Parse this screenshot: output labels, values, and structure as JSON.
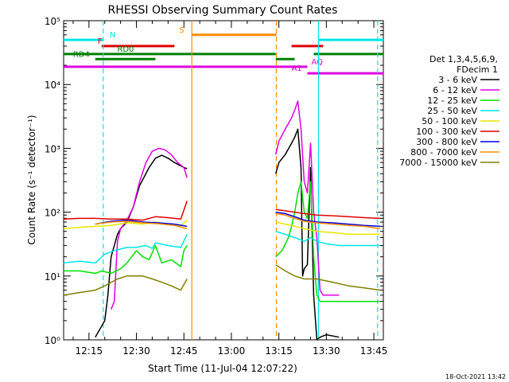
{
  "chart_data": {
    "type": "line",
    "title": "RHESSI Observing Summary Count Rates",
    "xlabel": "Start Time (11-Jul-04 12:07:22)",
    "ylabel": "Count Rate (s⁻¹ detector⁻¹)",
    "x_ticks": [
      "12:15",
      "12:30",
      "12:45",
      "13:00",
      "13:15",
      "13:30",
      "13:45"
    ],
    "x_range_minutes_after_1207": [
      0,
      101
    ],
    "y_scale": "log",
    "y_range": [
      1,
      100000
    ],
    "y_ticks": [
      "10⁰",
      "10¹",
      "10²",
      "10³",
      "10⁴",
      "10⁵"
    ],
    "footer_date": "18-Oct-2021 13:42",
    "legend": {
      "header": [
        "Det 1,3,4,5,6,9,",
        "FDecim 1"
      ],
      "placement": "right",
      "entries": [
        {
          "label": "3 - 6 keV",
          "color": "#000000"
        },
        {
          "label": "6 - 12 keV",
          "color": "#e000e0"
        },
        {
          "label": "12 - 25 keV",
          "color": "#00e000"
        },
        {
          "label": "25 - 50 keV",
          "color": "#00e6e6"
        },
        {
          "label": "50 - 100 keV",
          "color": "#e6e600"
        },
        {
          "label": "100 - 300 keV",
          "color": "#e00000"
        },
        {
          "label": "300 - 800 keV",
          "color": "#0000e0"
        },
        {
          "label": "800 - 7000 keV",
          "color": "#ff8c00"
        },
        {
          "label": "7000 - 15000 keV",
          "color": "#808000"
        }
      ]
    },
    "series": [
      {
        "color": "#000000",
        "points": [
          [
            10,
            1.1
          ],
          [
            13,
            2
          ],
          [
            14,
            5
          ],
          [
            15,
            20
          ],
          [
            17,
            45
          ],
          [
            18,
            55
          ],
          [
            20,
            70
          ],
          [
            22,
            120
          ],
          [
            24,
            260
          ],
          [
            27,
            500
          ],
          [
            29,
            700
          ],
          [
            31,
            780
          ],
          [
            33,
            700
          ],
          [
            35,
            600
          ],
          [
            38,
            500
          ],
          [
            39,
            480
          ]
        ]
      },
      {
        "color": "#000000",
        "points": [
          [
            67,
            400
          ],
          [
            68,
            600
          ],
          [
            70,
            800
          ],
          [
            72,
            1200
          ],
          [
            73,
            1500
          ],
          [
            74,
            2000
          ],
          [
            75,
            500
          ],
          [
            75.5,
            10
          ],
          [
            76,
            13
          ],
          [
            77,
            15
          ],
          [
            78,
            500
          ],
          [
            79,
            5
          ],
          [
            80,
            1
          ],
          [
            81,
            1.1
          ],
          [
            83,
            1.2
          ],
          [
            87,
            1.1
          ]
        ]
      },
      {
        "color": "#e000e0",
        "points": [
          [
            15,
            3
          ],
          [
            16,
            4
          ],
          [
            17,
            35
          ],
          [
            18,
            55
          ],
          [
            20,
            75
          ],
          [
            22,
            120
          ],
          [
            24,
            300
          ],
          [
            26,
            600
          ],
          [
            28,
            900
          ],
          [
            30,
            1000
          ],
          [
            32,
            950
          ],
          [
            34,
            800
          ],
          [
            36,
            600
          ],
          [
            38,
            500
          ],
          [
            39,
            350
          ]
        ]
      },
      {
        "color": "#e000e0",
        "points": [
          [
            67,
            800
          ],
          [
            68,
            1300
          ],
          [
            70,
            2000
          ],
          [
            72,
            3000
          ],
          [
            73,
            4000
          ],
          [
            74,
            5500
          ],
          [
            75,
            2000
          ],
          [
            76,
            300
          ],
          [
            77,
            200
          ],
          [
            78,
            1200
          ],
          [
            79,
            100
          ],
          [
            80,
            40
          ],
          [
            81,
            6
          ],
          [
            82,
            5
          ],
          [
            84,
            5
          ],
          [
            87,
            5
          ]
        ]
      },
      {
        "color": "#00e000",
        "points": [
          [
            0,
            12
          ],
          [
            5,
            12
          ],
          [
            10,
            11
          ],
          [
            12,
            12
          ],
          [
            15,
            11
          ],
          [
            18,
            13
          ],
          [
            20,
            16
          ],
          [
            23,
            25
          ],
          [
            25,
            20
          ],
          [
            27,
            18
          ],
          [
            29,
            30
          ],
          [
            31,
            16
          ],
          [
            34,
            18
          ],
          [
            37,
            14
          ],
          [
            38,
            25
          ],
          [
            39,
            30
          ]
        ]
      },
      {
        "color": "#00e000",
        "points": [
          [
            67,
            20
          ],
          [
            69,
            25
          ],
          [
            71,
            40
          ],
          [
            72,
            60
          ],
          [
            73,
            100
          ],
          [
            74,
            200
          ],
          [
            75,
            300
          ],
          [
            76,
            100
          ],
          [
            77,
            80
          ],
          [
            78,
            300
          ],
          [
            79,
            20
          ],
          [
            80,
            5
          ],
          [
            81,
            4
          ],
          [
            85,
            4
          ],
          [
            90,
            4
          ],
          [
            95,
            4
          ],
          [
            100,
            4
          ]
        ]
      },
      {
        "color": "#00e6e6",
        "points": [
          [
            0,
            16
          ],
          [
            5,
            17
          ],
          [
            10,
            16
          ],
          [
            13,
            22
          ],
          [
            16,
            25
          ],
          [
            20,
            28
          ],
          [
            23,
            28
          ],
          [
            26,
            30
          ],
          [
            28,
            27
          ],
          [
            29,
            33
          ],
          [
            33,
            30
          ],
          [
            37,
            28
          ],
          [
            39,
            45
          ]
        ]
      },
      {
        "color": "#00e6e6",
        "points": [
          [
            67,
            50
          ],
          [
            70,
            45
          ],
          [
            73,
            40
          ],
          [
            76,
            35
          ],
          [
            78,
            40
          ],
          [
            80,
            35
          ],
          [
            83,
            32
          ],
          [
            87,
            30
          ],
          [
            92,
            30
          ],
          [
            97,
            30
          ],
          [
            100,
            30
          ]
        ]
      },
      {
        "color": "#e6e600",
        "points": [
          [
            0,
            55
          ],
          [
            5,
            58
          ],
          [
            10,
            60
          ],
          [
            15,
            62
          ],
          [
            20,
            68
          ],
          [
            25,
            65
          ],
          [
            29,
            70
          ],
          [
            33,
            65
          ],
          [
            37,
            60
          ],
          [
            39,
            75
          ]
        ]
      },
      {
        "color": "#e6e600",
        "points": [
          [
            67,
            70
          ],
          [
            70,
            65
          ],
          [
            73,
            60
          ],
          [
            76,
            55
          ],
          [
            80,
            50
          ],
          [
            85,
            48
          ],
          [
            90,
            45
          ],
          [
            95,
            45
          ],
          [
            100,
            45
          ]
        ]
      },
      {
        "color": "#e00000",
        "points": [
          [
            0,
            78
          ],
          [
            5,
            80
          ],
          [
            10,
            80
          ],
          [
            15,
            78
          ],
          [
            20,
            78
          ],
          [
            25,
            75
          ],
          [
            29,
            85
          ],
          [
            33,
            82
          ],
          [
            37,
            78
          ],
          [
            39,
            150
          ]
        ]
      },
      {
        "color": "#e00000",
        "points": [
          [
            67,
            110
          ],
          [
            70,
            105
          ],
          [
            73,
            100
          ],
          [
            76,
            95
          ],
          [
            80,
            90
          ],
          [
            85,
            88
          ],
          [
            90,
            85
          ],
          [
            95,
            82
          ],
          [
            100,
            80
          ]
        ]
      },
      {
        "color": "#0000e0",
        "points": [
          [
            10,
            65
          ],
          [
            15,
            72
          ],
          [
            20,
            75
          ],
          [
            25,
            70
          ],
          [
            30,
            68
          ],
          [
            35,
            65
          ],
          [
            39,
            60
          ]
        ]
      },
      {
        "color": "#0000e0",
        "points": [
          [
            67,
            100
          ],
          [
            70,
            95
          ],
          [
            73,
            85
          ],
          [
            76,
            75
          ],
          [
            80,
            70
          ],
          [
            85,
            68
          ],
          [
            90,
            65
          ],
          [
            95,
            62
          ],
          [
            100,
            60
          ]
        ]
      },
      {
        "color": "#ff8c00",
        "points": [
          [
            10,
            65
          ],
          [
            15,
            70
          ],
          [
            20,
            72
          ],
          [
            25,
            68
          ],
          [
            30,
            66
          ],
          [
            35,
            62
          ],
          [
            39,
            55
          ]
        ]
      },
      {
        "color": "#ff8c00",
        "points": [
          [
            67,
            95
          ],
          [
            70,
            90
          ],
          [
            73,
            80
          ],
          [
            76,
            72
          ],
          [
            80,
            68
          ],
          [
            85,
            65
          ],
          [
            90,
            62
          ],
          [
            95,
            60
          ],
          [
            100,
            55
          ]
        ]
      },
      {
        "color": "#808000",
        "points": [
          [
            0,
            5
          ],
          [
            5,
            5.5
          ],
          [
            10,
            6
          ],
          [
            13,
            7
          ],
          [
            17,
            9
          ],
          [
            20,
            10
          ],
          [
            25,
            10
          ],
          [
            28,
            9
          ],
          [
            31,
            8
          ],
          [
            34,
            7
          ],
          [
            37,
            6
          ],
          [
            39,
            9
          ]
        ]
      },
      {
        "color": "#808000",
        "points": [
          [
            67,
            15
          ],
          [
            70,
            12
          ],
          [
            73,
            10
          ],
          [
            76,
            9
          ],
          [
            80,
            9
          ],
          [
            85,
            8
          ],
          [
            90,
            7
          ],
          [
            95,
            6.5
          ],
          [
            100,
            6
          ]
        ]
      }
    ],
    "vertical_markers": [
      {
        "x": 12.5,
        "color": "#00e6e6",
        "style": "dashed"
      },
      {
        "x": 40.5,
        "color": "#ff8c00",
        "style": "solid"
      },
      {
        "x": 67.2,
        "color": "#ff8c00",
        "style": "dashed"
      },
      {
        "x": 80.5,
        "color": "#00e6e6",
        "style": "solid"
      },
      {
        "x": 99.2,
        "color": "#00e6e6",
        "style": "dashed"
      }
    ],
    "flag_bars": [
      {
        "label": "N",
        "color": "#00e6e6",
        "y": 50000,
        "segments": [
          [
            0,
            12.5
          ],
          [
            80.5,
            101
          ]
        ]
      },
      {
        "label": "S",
        "color": "#ff8c00",
        "y": 60000,
        "segments": [
          [
            40.5,
            67.2
          ]
        ]
      },
      {
        "label": "F",
        "color": "#e00000",
        "y": 40000,
        "segments": [
          [
            12,
            35
          ],
          [
            72,
            82
          ]
        ]
      },
      {
        "label": "RD0",
        "color": "#008000",
        "y": 30000,
        "segments": [
          [
            0,
            30
          ],
          [
            30,
            67
          ],
          [
            79,
            101
          ]
        ]
      },
      {
        "label": "RD4",
        "color": "#008000",
        "y": 25000,
        "segments": [
          [
            10,
            29
          ],
          [
            67,
            73
          ]
        ]
      },
      {
        "label": "AQ",
        "color": "#e000e0",
        "y": 19000,
        "segments": [
          [
            0,
            77
          ]
        ]
      },
      {
        "label": "A1",
        "color": "#e000e0",
        "y": 15000,
        "segments": [
          [
            77,
            101
          ]
        ]
      }
    ]
  }
}
